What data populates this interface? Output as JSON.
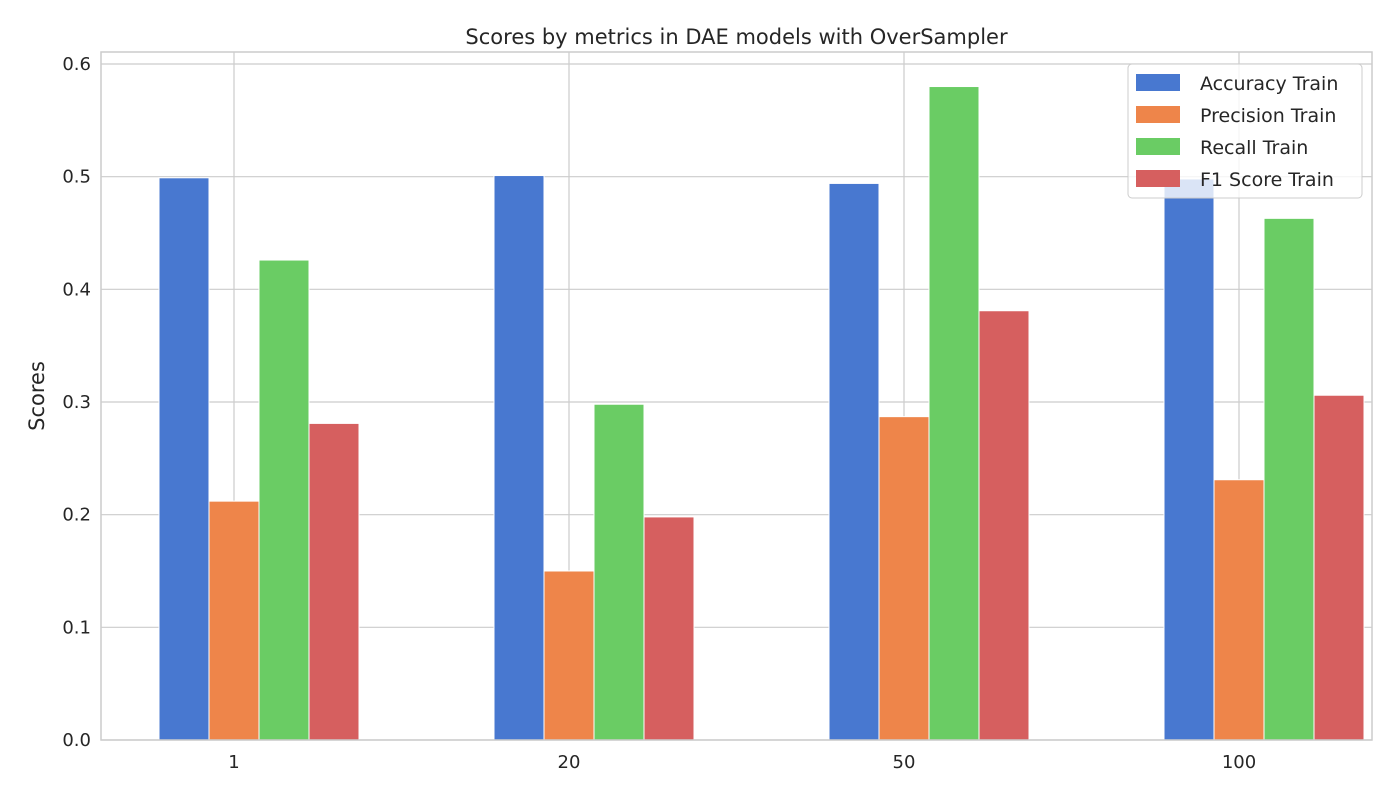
{
  "chart_data": {
    "type": "bar",
    "title": "Scores by metrics in DAE models with OverSampler",
    "xlabel": "",
    "ylabel": "Scores",
    "categories": [
      "1",
      "20",
      "50",
      "100"
    ],
    "ylim": [
      0,
      0.6
    ],
    "yticks": [
      "0.0",
      "0.1",
      "0.2",
      "0.3",
      "0.4",
      "0.5",
      "0.6"
    ],
    "grid": true,
    "legend_position": "top-right",
    "series": [
      {
        "name": "Accuracy Train",
        "color": "#4878d0",
        "values": [
          0.499,
          0.501,
          0.494,
          0.498
        ]
      },
      {
        "name": "Precision Train",
        "color": "#ee854a",
        "values": [
          0.212,
          0.15,
          0.287,
          0.231
        ]
      },
      {
        "name": "Recall Train",
        "color": "#6acc64",
        "values": [
          0.426,
          0.298,
          0.58,
          0.463
        ]
      },
      {
        "name": "F1 Score Train",
        "color": "#d65f5f",
        "values": [
          0.281,
          0.198,
          0.381,
          0.306
        ]
      }
    ]
  }
}
